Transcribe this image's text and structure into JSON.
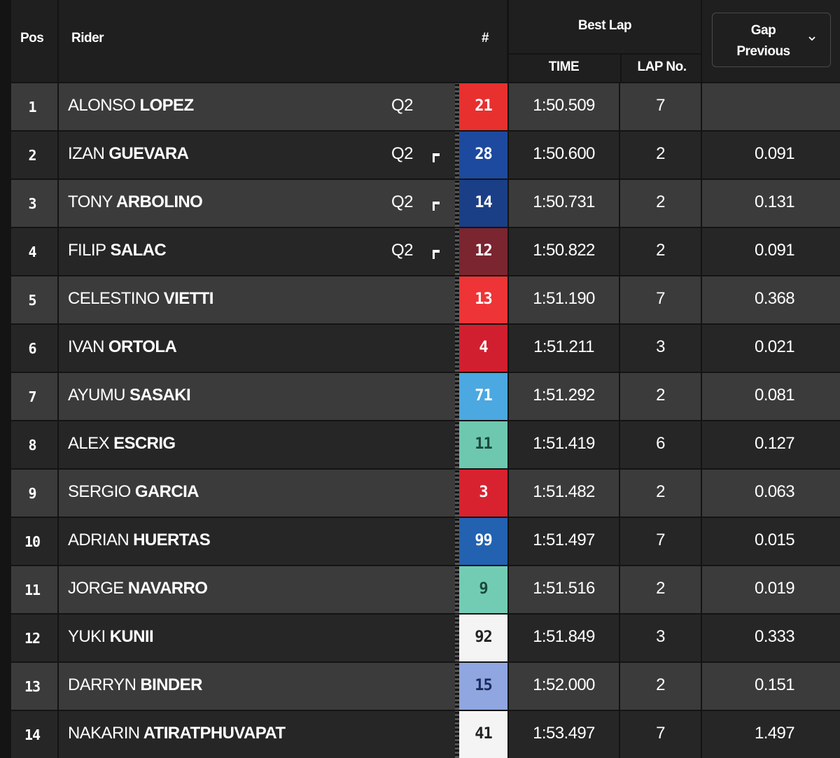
{
  "header": {
    "pos_label": "Pos",
    "rider_label": "Rider",
    "number_label": "#",
    "best_lap_label": "Best Lap",
    "time_label": "TIME",
    "lap_no_label": "LAP No.",
    "gap_line1": "Gap",
    "gap_line2": "Previous"
  },
  "rows": [
    {
      "pos": "1",
      "first": "ALONSO",
      "last": "LOPEZ",
      "q2": "Q2",
      "flag": false,
      "number": "21",
      "num_bg": "#e8302f",
      "num_fg": "#ffffff",
      "time": "1:50.509",
      "lap": "7",
      "gap": ""
    },
    {
      "pos": "2",
      "first": "IZAN",
      "last": "GUEVARA",
      "q2": "Q2",
      "flag": true,
      "number": "28",
      "num_bg": "#1d4a9e",
      "num_fg": "#ffffff",
      "time": "1:50.600",
      "lap": "2",
      "gap": "0.091"
    },
    {
      "pos": "3",
      "first": "TONY",
      "last": "ARBOLINO",
      "q2": "Q2",
      "flag": true,
      "number": "14",
      "num_bg": "#1b3f86",
      "num_fg": "#ffffff",
      "time": "1:50.731",
      "lap": "2",
      "gap": "0.131"
    },
    {
      "pos": "4",
      "first": "FILIP",
      "last": "SALAC",
      "q2": "Q2",
      "flag": true,
      "number": "12",
      "num_bg": "#7a2530",
      "num_fg": "#ffffff",
      "time": "1:50.822",
      "lap": "2",
      "gap": "0.091"
    },
    {
      "pos": "5",
      "first": "CELESTINO",
      "last": "VIETTI",
      "q2": "",
      "flag": false,
      "number": "13",
      "num_bg": "#ee3436",
      "num_fg": "#ffffff",
      "time": "1:51.190",
      "lap": "7",
      "gap": "0.368"
    },
    {
      "pos": "6",
      "first": "IVAN",
      "last": "ORTOLA",
      "q2": "",
      "flag": false,
      "number": "4",
      "num_bg": "#d21f2f",
      "num_fg": "#ffffff",
      "time": "1:51.211",
      "lap": "3",
      "gap": "0.021"
    },
    {
      "pos": "7",
      "first": "AYUMU",
      "last": "SASAKI",
      "q2": "",
      "flag": false,
      "number": "71",
      "num_bg": "#4ca8e0",
      "num_fg": "#ffffff",
      "time": "1:51.292",
      "lap": "2",
      "gap": "0.081"
    },
    {
      "pos": "8",
      "first": "ALEX",
      "last": "ESCRIG",
      "q2": "",
      "flag": false,
      "number": "11",
      "num_bg": "#6ec8b0",
      "num_fg": "#1a4a3a",
      "time": "1:51.419",
      "lap": "6",
      "gap": "0.127"
    },
    {
      "pos": "9",
      "first": "SERGIO",
      "last": "GARCIA",
      "q2": "",
      "flag": false,
      "number": "3",
      "num_bg": "#d82230",
      "num_fg": "#ffffff",
      "time": "1:51.482",
      "lap": "2",
      "gap": "0.063"
    },
    {
      "pos": "10",
      "first": "ADRIAN",
      "last": "HUERTAS",
      "q2": "",
      "flag": false,
      "number": "99",
      "num_bg": "#2262b0",
      "num_fg": "#ffffff",
      "time": "1:51.497",
      "lap": "7",
      "gap": "0.015"
    },
    {
      "pos": "11",
      "first": "JORGE",
      "last": "NAVARRO",
      "q2": "",
      "flag": false,
      "number": "9",
      "num_bg": "#72ccb4",
      "num_fg": "#1a4a3a",
      "time": "1:51.516",
      "lap": "2",
      "gap": "0.019"
    },
    {
      "pos": "12",
      "first": "YUKI",
      "last": "KUNII",
      "q2": "",
      "flag": false,
      "number": "92",
      "num_bg": "#f4f4f4",
      "num_fg": "#222222",
      "time": "1:51.849",
      "lap": "3",
      "gap": "0.333"
    },
    {
      "pos": "13",
      "first": "DARRYN",
      "last": "BINDER",
      "q2": "",
      "flag": false,
      "number": "15",
      "num_bg": "#8fa6e0",
      "num_fg": "#1b2a5a",
      "time": "1:52.000",
      "lap": "2",
      "gap": "0.151"
    },
    {
      "pos": "14",
      "first": "NAKARIN",
      "last": "ATIRATPHUVAPAT",
      "q2": "",
      "flag": false,
      "number": "41",
      "num_bg": "#f4f4f4",
      "num_fg": "#222222",
      "time": "1:53.497",
      "lap": "7",
      "gap": "1.497"
    }
  ]
}
